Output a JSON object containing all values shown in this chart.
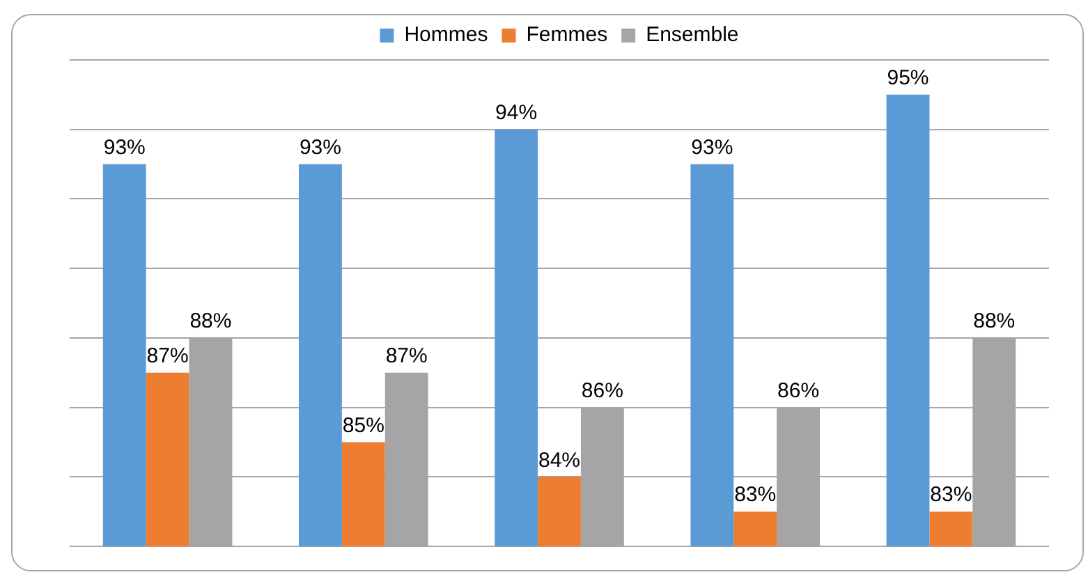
{
  "chart_data": {
    "type": "bar",
    "categories": [
      null,
      null,
      null,
      null,
      null
    ],
    "series": [
      {
        "name": "Hommes",
        "color": "#5b9bd5",
        "values": [
          93,
          93,
          94,
          93,
          95
        ],
        "value_labels": [
          "93%",
          "93%",
          "94%",
          "93%",
          "95%"
        ]
      },
      {
        "name": "Femmes",
        "color": "#ed7d31",
        "values": [
          87,
          85,
          84,
          83,
          83
        ],
        "value_labels": [
          "87%",
          "85%",
          "84%",
          "83%",
          "83%"
        ]
      },
      {
        "name": "Ensemble",
        "color": "#a5a5a5",
        "values": [
          88,
          87,
          86,
          86,
          88
        ],
        "value_labels": [
          "88%",
          "87%",
          "86%",
          "86%",
          "88%"
        ]
      }
    ],
    "tick_labels": false,
    "grid": "y",
    "legend": "top"
  }
}
